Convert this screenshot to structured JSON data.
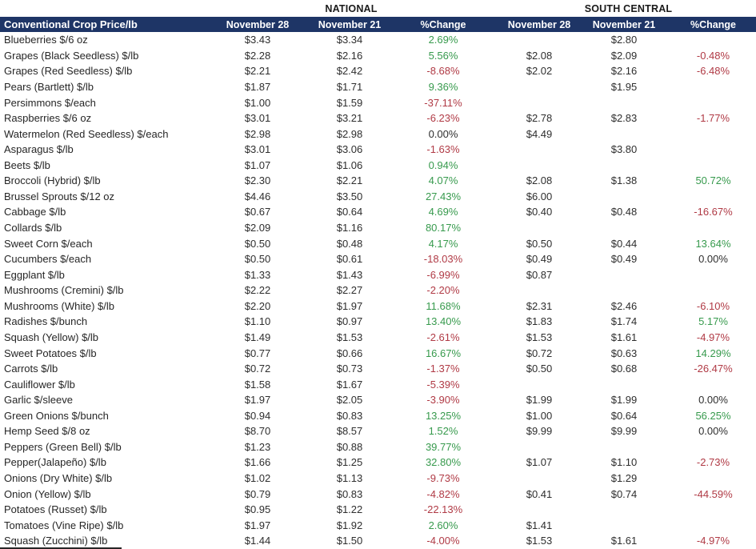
{
  "table": {
    "group_headers": {
      "national": "NATIONAL",
      "south_central": "SOUTH CENTRAL"
    },
    "columns": [
      "Conventional Crop Price/lb",
      "November 28",
      "November 21",
      "%Change",
      "November 28",
      "November 21",
      "%Change"
    ],
    "colors": {
      "header_bg": "#1E3566",
      "header_text": "#FFFFFF",
      "positive": "#379A4D",
      "negative": "#B03A45",
      "neutral": "#2e2e2e"
    },
    "rows": [
      [
        "Blueberries $/6 oz",
        "$3.43",
        "$3.34",
        "2.69%",
        "",
        "$2.80",
        ""
      ],
      [
        "Grapes (Black Seedless) $/lb",
        "$2.28",
        "$2.16",
        "5.56%",
        "$2.08",
        "$2.09",
        "-0.48%"
      ],
      [
        "Grapes (Red Seedless) $/lb",
        "$2.21",
        "$2.42",
        "-8.68%",
        "$2.02",
        "$2.16",
        "-6.48%"
      ],
      [
        "Pears (Bartlett) $/lb",
        "$1.87",
        "$1.71",
        "9.36%",
        "",
        "$1.95",
        ""
      ],
      [
        "Persimmons $/each",
        "$1.00",
        "$1.59",
        "-37.11%",
        "",
        "",
        ""
      ],
      [
        "Raspberries $/6 oz",
        "$3.01",
        "$3.21",
        "-6.23%",
        "$2.78",
        "$2.83",
        "-1.77%"
      ],
      [
        "Watermelon (Red Seedless) $/each",
        "$2.98",
        "$2.98",
        "0.00%",
        "$4.49",
        "",
        ""
      ],
      [
        "Asparagus $/lb",
        "$3.01",
        "$3.06",
        "-1.63%",
        "",
        "$3.80",
        ""
      ],
      [
        "Beets $/lb",
        "$1.07",
        "$1.06",
        "0.94%",
        "",
        "",
        ""
      ],
      [
        "Broccoli (Hybrid) $/lb",
        "$2.30",
        "$2.21",
        "4.07%",
        "$2.08",
        "$1.38",
        "50.72%"
      ],
      [
        "Brussel Sprouts $/12 oz",
        "$4.46",
        "$3.50",
        "27.43%",
        "$6.00",
        "",
        ""
      ],
      [
        "Cabbage $/lb",
        "$0.67",
        "$0.64",
        "4.69%",
        "$0.40",
        "$0.48",
        "-16.67%"
      ],
      [
        "Collards $/lb",
        "$2.09",
        "$1.16",
        "80.17%",
        "",
        "",
        ""
      ],
      [
        "Sweet Corn $/each",
        "$0.50",
        "$0.48",
        "4.17%",
        "$0.50",
        "$0.44",
        "13.64%"
      ],
      [
        "Cucumbers $/each",
        "$0.50",
        "$0.61",
        "-18.03%",
        "$0.49",
        "$0.49",
        "0.00%"
      ],
      [
        "Eggplant $/lb",
        "$1.33",
        "$1.43",
        "-6.99%",
        "$0.87",
        "",
        ""
      ],
      [
        "Mushrooms (Cremini) $/lb",
        "$2.22",
        "$2.27",
        "-2.20%",
        "",
        "",
        ""
      ],
      [
        "Mushrooms (White) $/lb",
        "$2.20",
        "$1.97",
        "11.68%",
        "$2.31",
        "$2.46",
        "-6.10%"
      ],
      [
        "Radishes $/bunch",
        "$1.10",
        "$0.97",
        "13.40%",
        "$1.83",
        "$1.74",
        "5.17%"
      ],
      [
        "Squash (Yellow) $/lb",
        "$1.49",
        "$1.53",
        "-2.61%",
        "$1.53",
        "$1.61",
        "-4.97%"
      ],
      [
        "Sweet Potatoes $/lb",
        "$0.77",
        "$0.66",
        "16.67%",
        "$0.72",
        "$0.63",
        "14.29%"
      ],
      [
        "Carrots $/lb",
        "$0.72",
        "$0.73",
        "-1.37%",
        "$0.50",
        "$0.68",
        "-26.47%"
      ],
      [
        "Cauliflower $/lb",
        "$1.58",
        "$1.67",
        "-5.39%",
        "",
        "",
        ""
      ],
      [
        "Garlic $/sleeve",
        "$1.97",
        "$2.05",
        "-3.90%",
        "$1.99",
        "$1.99",
        "0.00%"
      ],
      [
        "Green Onions $/bunch",
        "$0.94",
        "$0.83",
        "13.25%",
        "$1.00",
        "$0.64",
        "56.25%"
      ],
      [
        "Hemp Seed $/8 oz",
        "$8.70",
        "$8.57",
        "1.52%",
        "$9.99",
        "$9.99",
        "0.00%"
      ],
      [
        "Peppers (Green Bell) $/lb",
        "$1.23",
        "$0.88",
        "39.77%",
        "",
        "",
        ""
      ],
      [
        "Pepper(Jalapeño) $/lb",
        "$1.66",
        "$1.25",
        "32.80%",
        "$1.07",
        "$1.10",
        "-2.73%"
      ],
      [
        "Onions (Dry White) $/lb",
        "$1.02",
        "$1.13",
        "-9.73%",
        "",
        "$1.29",
        ""
      ],
      [
        "Onion (Yellow) $/lb",
        "$0.79",
        "$0.83",
        "-4.82%",
        "$0.41",
        "$0.74",
        "-44.59%"
      ],
      [
        "Potatoes (Russet) $/lb",
        "$0.95",
        "$1.22",
        "-22.13%",
        "",
        "",
        ""
      ],
      [
        "Tomatoes (Vine Ripe) $/lb",
        "$1.97",
        "$1.92",
        "2.60%",
        "$1.41",
        "",
        ""
      ],
      [
        "Squash (Zucchini) $/lb",
        "$1.44",
        "$1.50",
        "-4.00%",
        "$1.53",
        "$1.61",
        "-4.97%"
      ]
    ]
  }
}
